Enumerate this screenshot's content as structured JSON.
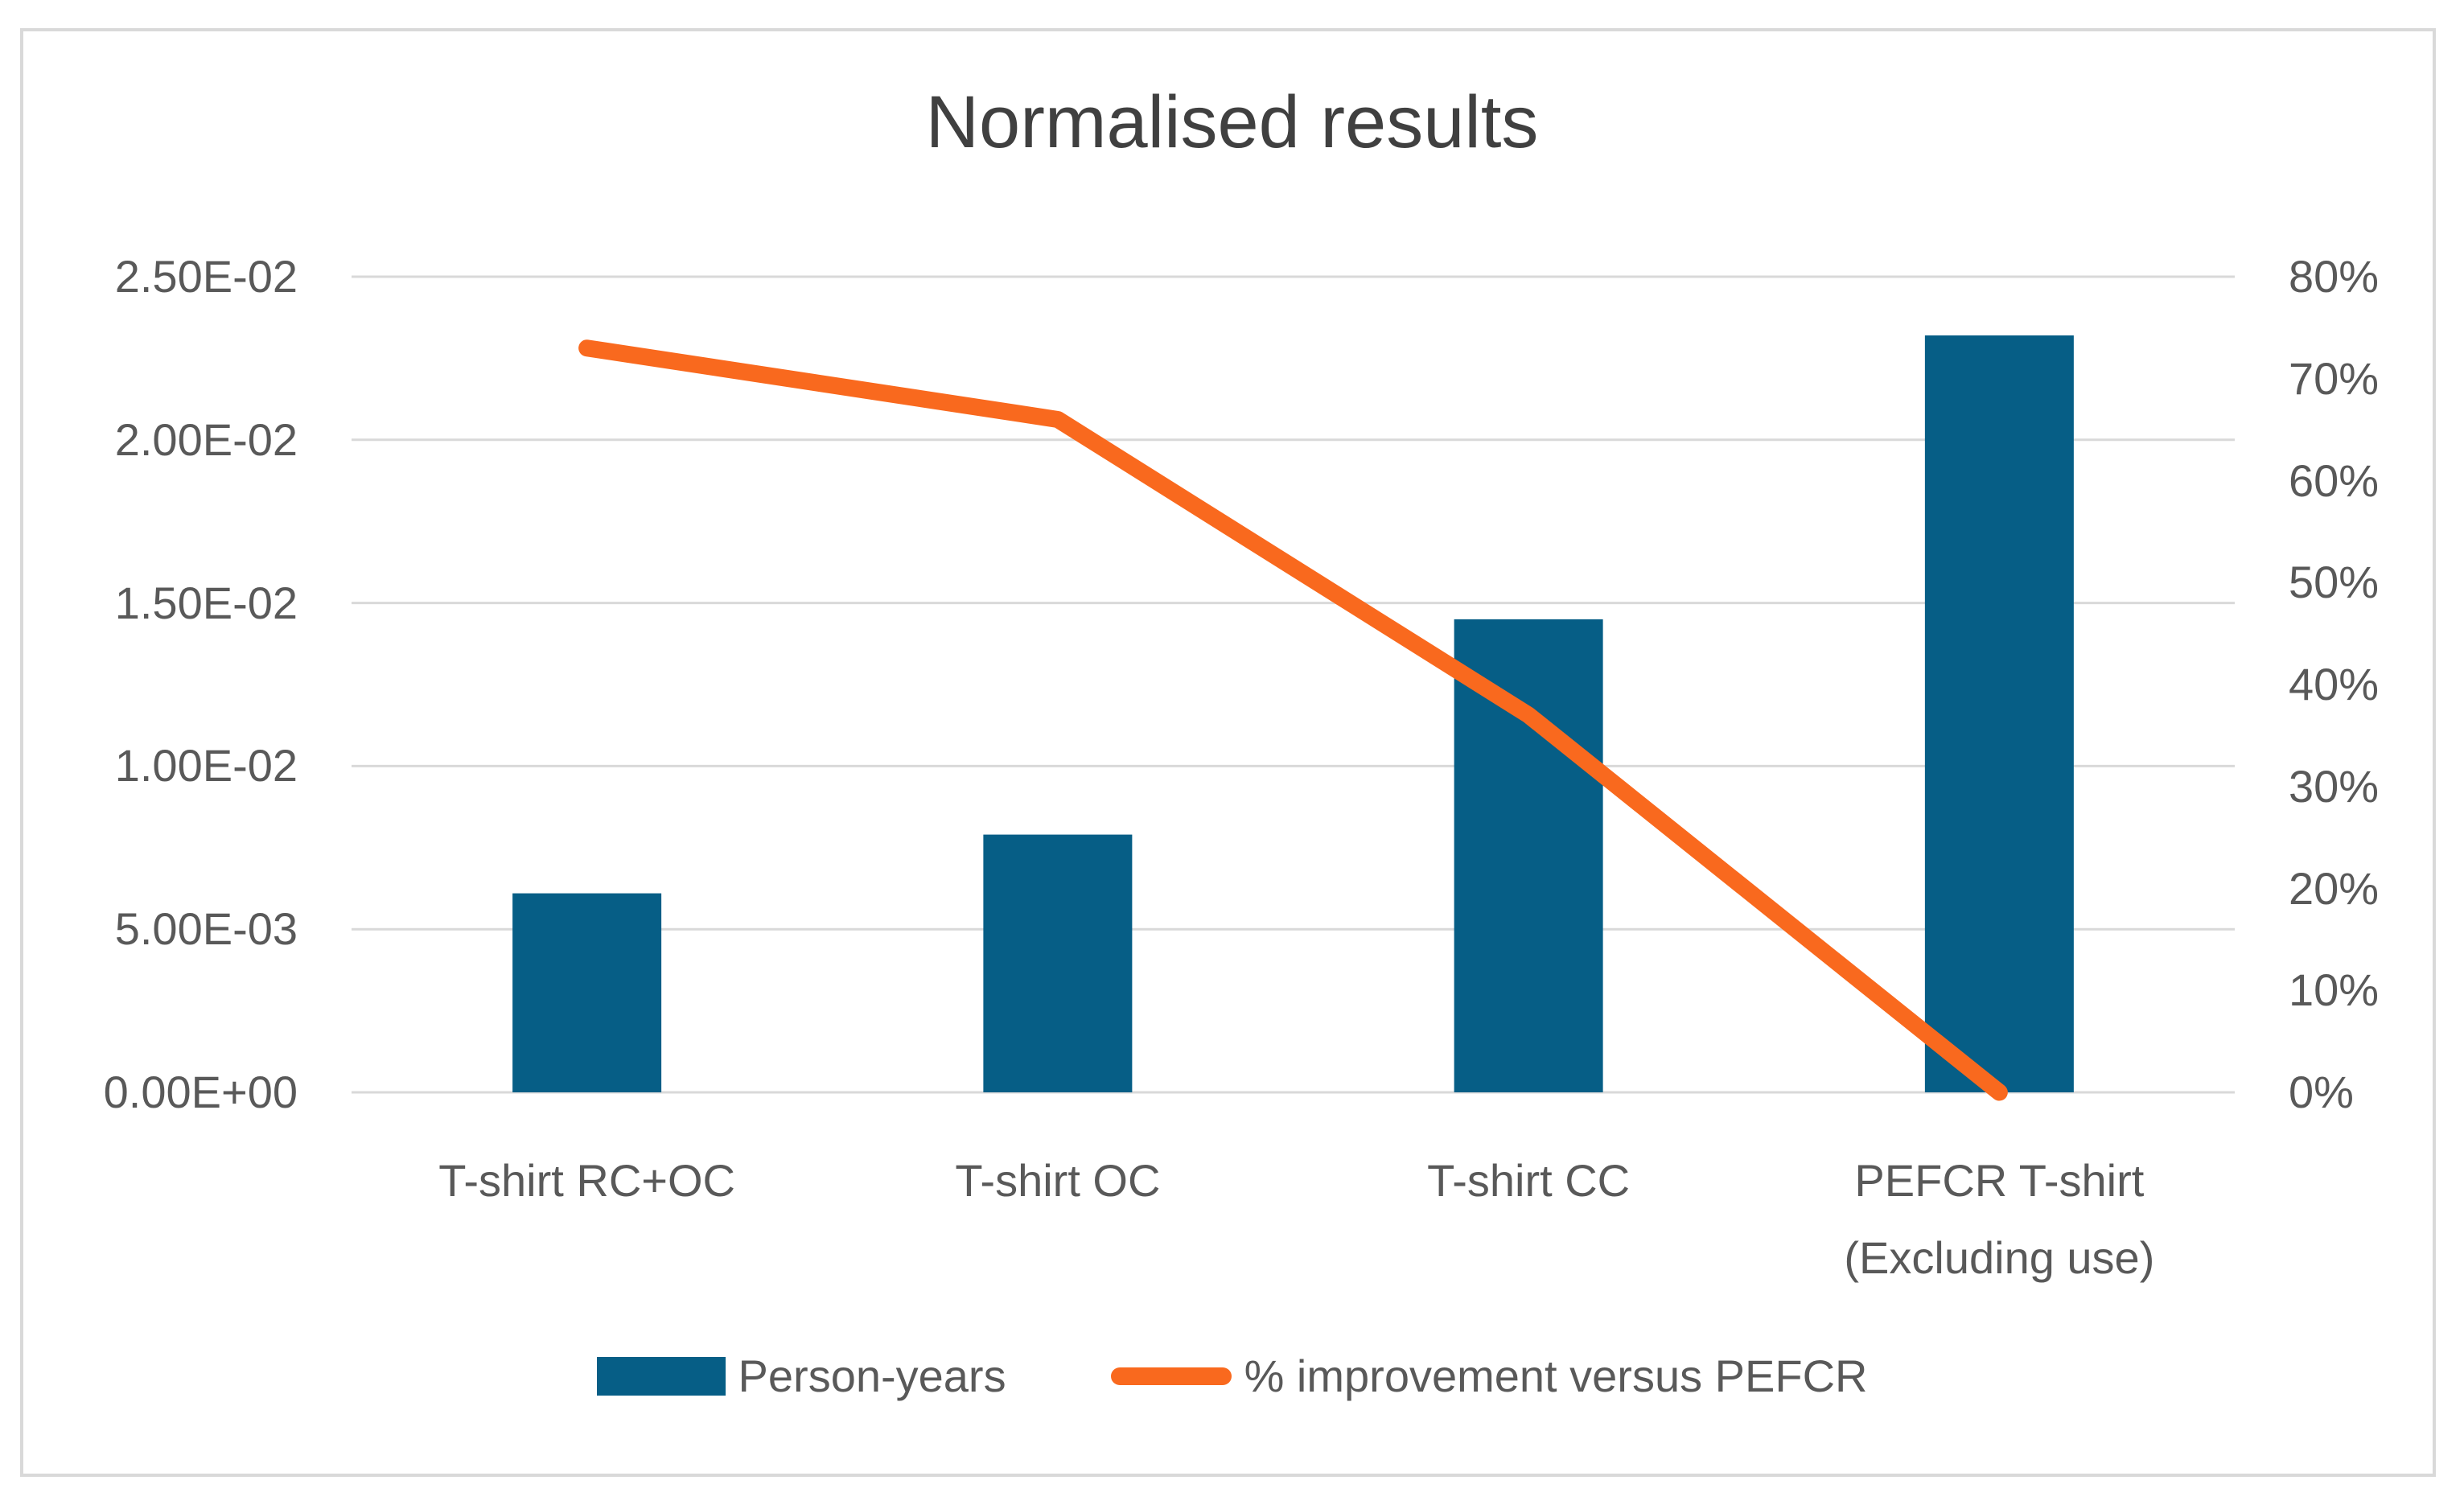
{
  "colors": {
    "bar": "#065e86",
    "line": "#f9691e",
    "grid": "#d9d9d9",
    "frame": "#d9d9d9",
    "axis_text": "#595959",
    "title_text": "#404040"
  },
  "chart_data": {
    "type": "combo-bar-line",
    "title": "Normalised results",
    "categories": [
      "T-shirt RC+OC",
      "T-shirt OC",
      "T-shirt CC",
      "PEFCR T-shirt\n(Excluding use)"
    ],
    "series": [
      {
        "name": "Person-years",
        "type": "bar",
        "axis": "left",
        "color": "#065e86",
        "values": [
          0.0061,
          0.0079,
          0.0145,
          0.0232
        ]
      },
      {
        "name": "% improvement versus PEFCR",
        "type": "line",
        "axis": "right",
        "color": "#f9691e",
        "values_percent": [
          73,
          66,
          37,
          0
        ]
      }
    ],
    "left_axis": {
      "min": 0,
      "max": 0.025,
      "ticks": [
        "0.00E+00",
        "5.00E-03",
        "1.00E-02",
        "1.50E-02",
        "2.00E-02",
        "2.50E-02"
      ]
    },
    "right_axis": {
      "min": 0,
      "max": 80,
      "ticks": [
        "0%",
        "10%",
        "20%",
        "30%",
        "40%",
        "50%",
        "60%",
        "70%",
        "80%"
      ]
    },
    "grid": true,
    "legend_position": "bottom"
  },
  "legend": {
    "items": [
      {
        "label": "Person-years"
      },
      {
        "label": "% improvement versus PEFCR"
      }
    ]
  }
}
